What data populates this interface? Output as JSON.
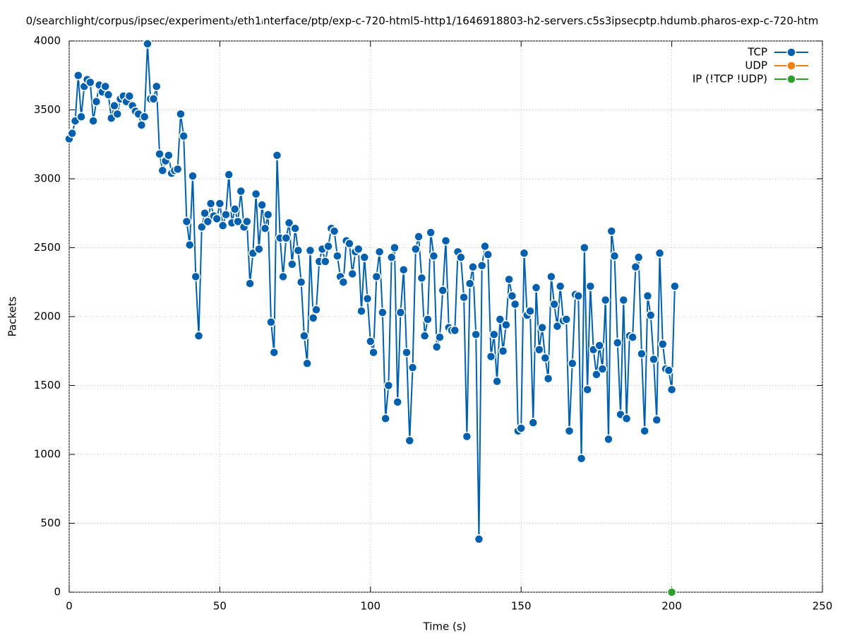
{
  "chart_data": {
    "type": "line",
    "title": "0/searchlight/corpus/ipsec/experiment₃/eth1ᵢnterface/ptp/exp-c-720-html5-http1/1646918803-h2-servers.c5s3ipsecptp.hdumb.pharos-exp-c-720-htm",
    "x_label": "Time (s)",
    "y_label": "Packets",
    "xlim": [
      0,
      250
    ],
    "xticks": [
      0,
      50,
      100,
      150,
      200,
      250
    ],
    "ylim": [
      0,
      4000
    ],
    "yticks": [
      0,
      500,
      1000,
      1500,
      2000,
      2500,
      3000,
      3500,
      4000
    ],
    "grid": true,
    "legend": "top-right",
    "series": [
      {
        "name": "TCP",
        "color": "#0060ad",
        "x": [
          0,
          1,
          2,
          3,
          4,
          5,
          6,
          7,
          8,
          9,
          10,
          11,
          12,
          13,
          14,
          15,
          16,
          17,
          18,
          19,
          20,
          21,
          22,
          23,
          24,
          25,
          26,
          27,
          28,
          29,
          30,
          31,
          32,
          33,
          34,
          35,
          36,
          37,
          38,
          39,
          40,
          41,
          42,
          43,
          44,
          45,
          46,
          47,
          48,
          49,
          50,
          51,
          52,
          53,
          54,
          55,
          56,
          57,
          58,
          59,
          60,
          61,
          62,
          63,
          64,
          65,
          66,
          67,
          68,
          69,
          70,
          71,
          72,
          73,
          74,
          75,
          76,
          77,
          78,
          79,
          80,
          81,
          82,
          83,
          84,
          85,
          86,
          87,
          88,
          89,
          90,
          91,
          92,
          93,
          94,
          95,
          96,
          97,
          98,
          99,
          100,
          101,
          102,
          103,
          104,
          105,
          106,
          107,
          108,
          109,
          110,
          111,
          112,
          113,
          114,
          115,
          116,
          117,
          118,
          119,
          120,
          121,
          122,
          123,
          124,
          125,
          126,
          127,
          128,
          129,
          130,
          131,
          132,
          133,
          134,
          135,
          136,
          137,
          138,
          139,
          140,
          141,
          142,
          143,
          144,
          145,
          146,
          147,
          148,
          149,
          150,
          151,
          152,
          153,
          154,
          155,
          156,
          157,
          158,
          159,
          160,
          161,
          162,
          163,
          164,
          165,
          166,
          167,
          168,
          169,
          170,
          171,
          172,
          173,
          174,
          175,
          176,
          177,
          178,
          179,
          180,
          181,
          182,
          183,
          184,
          185,
          186,
          187,
          188,
          189,
          190,
          191,
          192,
          193,
          194,
          195,
          196,
          197,
          198,
          199,
          200,
          201
        ],
        "values": [
          3290,
          3330,
          3420,
          3750,
          3450,
          3670,
          3720,
          3700,
          3420,
          3560,
          3680,
          3630,
          3670,
          3610,
          3440,
          3530,
          3470,
          3580,
          3600,
          3560,
          3600,
          3530,
          3490,
          3470,
          3390,
          3450,
          3980,
          3580,
          3580,
          3670,
          3180,
          3060,
          3130,
          3170,
          3040,
          3060,
          3070,
          3470,
          3310,
          2690,
          2520,
          3020,
          2290,
          1860,
          2650,
          2750,
          2690,
          2820,
          2730,
          2710,
          2820,
          2660,
          2740,
          3030,
          2680,
          2780,
          2690,
          2910,
          2650,
          2690,
          2240,
          2460,
          2890,
          2490,
          2810,
          2640,
          2740,
          1960,
          1740,
          3170,
          2570,
          2290,
          2570,
          2680,
          2380,
          2640,
          2480,
          2250,
          1860,
          1660,
          2480,
          1990,
          2050,
          2400,
          2490,
          2400,
          2510,
          2640,
          2620,
          2440,
          2290,
          2250,
          2550,
          2530,
          2310,
          2470,
          2490,
          2040,
          2430,
          2130,
          1820,
          1740,
          2290,
          2470,
          2030,
          1260,
          1500,
          2430,
          2500,
          1380,
          2030,
          2340,
          1740,
          1100,
          1630,
          2490,
          2580,
          2280,
          1860,
          1980,
          2610,
          2440,
          1780,
          1850,
          2190,
          2550,
          1920,
          1900,
          1900,
          2470,
          2430,
          2140,
          1130,
          2240,
          2360,
          1870,
          385,
          2370,
          2510,
          2450,
          1710,
          1870,
          1530,
          1980,
          1750,
          1940,
          2270,
          2150,
          2090,
          1170,
          1190,
          2460,
          2010,
          2040,
          1230,
          2210,
          1760,
          1920,
          1700,
          1550,
          2290,
          2090,
          1930,
          2220,
          1970,
          1980,
          1170,
          1660,
          2160,
          2150,
          970,
          2500,
          1470,
          2220,
          1760,
          1580,
          1790,
          1620,
          2120,
          1110,
          2620,
          2440,
          1810,
          1290,
          2120,
          1260,
          1860,
          1850,
          2360,
          2430,
          1730,
          1170,
          2150,
          2010,
          1690,
          1250,
          2460,
          1800,
          1620,
          1610,
          1470,
          2220
        ]
      },
      {
        "name": "UDP",
        "color": "#f07f10",
        "x": [],
        "values": []
      },
      {
        "name": "IP (!TCP  !UDP)",
        "color": "#2ca02c",
        "x": [
          200
        ],
        "values": [
          0
        ]
      }
    ]
  }
}
